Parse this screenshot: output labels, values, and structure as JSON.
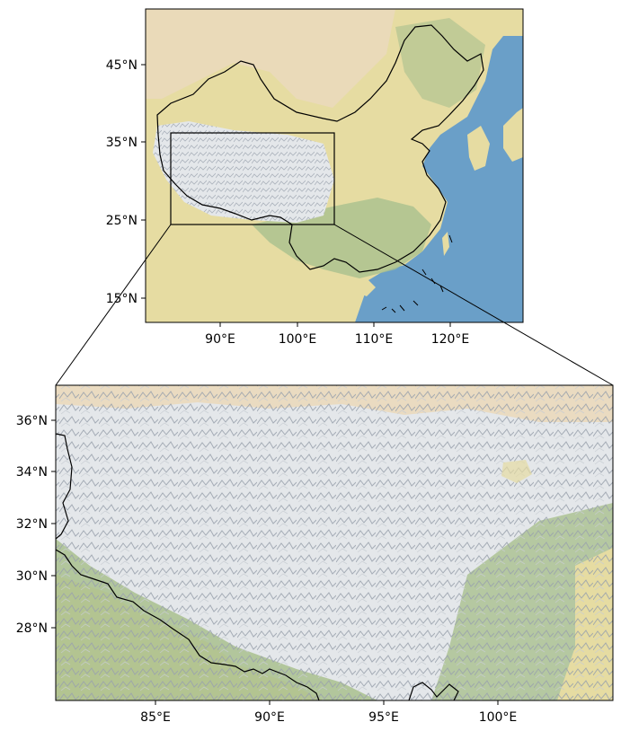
{
  "overview_map": {
    "lat_ticks": [
      "45°N",
      "35°N",
      "25°N",
      "15°N"
    ],
    "lon_ticks": [
      "90°E",
      "100°E",
      "110°E",
      "120°E"
    ]
  },
  "detail_map": {
    "lat_ticks": [
      "36°N",
      "34°N",
      "32°N",
      "30°N",
      "28°N"
    ],
    "lon_ticks": [
      "85°E",
      "90°E",
      "95°E",
      "100°E"
    ]
  },
  "colors": {
    "ocean": "#6a9fc8",
    "plains": "#e6dca2",
    "forest": "#a9c08e",
    "plateau": "#e4e7ea",
    "desert": "#ead9bd",
    "border": "#000000"
  }
}
